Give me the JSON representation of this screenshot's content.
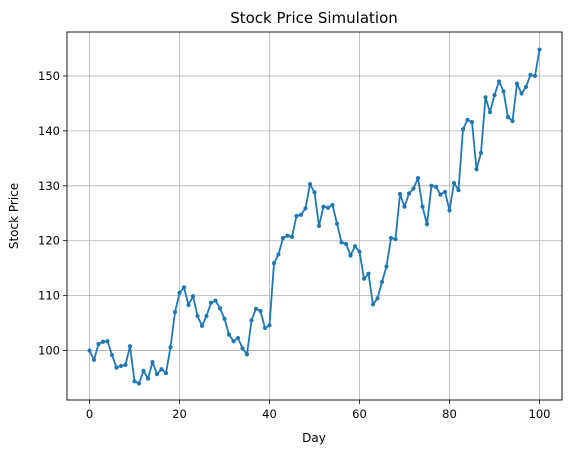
{
  "chart_data": {
    "type": "line",
    "title": "Stock Price Simulation",
    "xlabel": "Day",
    "ylabel": "Stock Price",
    "xlim": [
      -5,
      105
    ],
    "ylim": [
      91,
      158
    ],
    "xticks": [
      0,
      20,
      40,
      60,
      80,
      100
    ],
    "yticks": [
      100,
      110,
      120,
      130,
      140,
      150
    ],
    "grid": true,
    "line_color": "#1f77b4",
    "series": [
      {
        "x": [
          0,
          1,
          2,
          3,
          4,
          5,
          6,
          7,
          8,
          9,
          10,
          11,
          12,
          13,
          14,
          15,
          16,
          17,
          18,
          19,
          20,
          21,
          22,
          23,
          24,
          25,
          26,
          27,
          28,
          29,
          30,
          31,
          32,
          33,
          34,
          35,
          36,
          37,
          38,
          39,
          40,
          41,
          42,
          43,
          44,
          45,
          46,
          47,
          48,
          49,
          50,
          51,
          52,
          53,
          54,
          55,
          56,
          57,
          58,
          59,
          60,
          61,
          62,
          63,
          64,
          65,
          66,
          67,
          68,
          69,
          70,
          71,
          72,
          73,
          74,
          75,
          76,
          77,
          78,
          79,
          80,
          81,
          82,
          83,
          84,
          85,
          86,
          87,
          88,
          89,
          90,
          91,
          92,
          93,
          94,
          95,
          96,
          97,
          98,
          99,
          100
        ],
        "values": [
          100.0,
          98.3,
          101.2,
          101.6,
          101.7,
          99.2,
          96.9,
          97.2,
          97.4,
          100.8,
          94.4,
          94.0,
          96.3,
          94.9,
          97.9,
          95.7,
          96.6,
          95.9,
          100.6,
          107.0,
          110.5,
          111.5,
          108.3,
          109.9,
          106.3,
          104.5,
          106.3,
          108.7,
          109.1,
          107.7,
          105.8,
          102.9,
          101.7,
          102.3,
          100.4,
          99.3,
          105.5,
          107.6,
          107.2,
          104.1,
          104.6,
          115.9,
          117.5,
          120.5,
          120.9,
          120.7,
          124.5,
          124.7,
          125.9,
          130.3,
          128.8,
          122.7,
          126.2,
          126.0,
          126.5,
          123.1,
          119.7,
          119.4,
          117.3,
          119.0,
          118.0,
          113.1,
          114.0,
          108.4,
          109.5,
          112.5,
          115.3,
          120.5,
          120.3,
          128.5,
          126.2,
          128.6,
          129.5,
          131.4,
          126.2,
          123.0,
          130.0,
          129.8,
          128.4,
          128.9,
          125.5,
          130.5,
          129.2,
          140.3,
          142.0,
          141.6,
          133.0,
          136.0,
          146.1,
          143.4,
          146.5,
          149.0,
          147.2,
          142.5,
          141.8,
          148.6,
          146.8,
          148.0,
          150.2,
          150.0,
          154.8
        ]
      }
    ]
  }
}
